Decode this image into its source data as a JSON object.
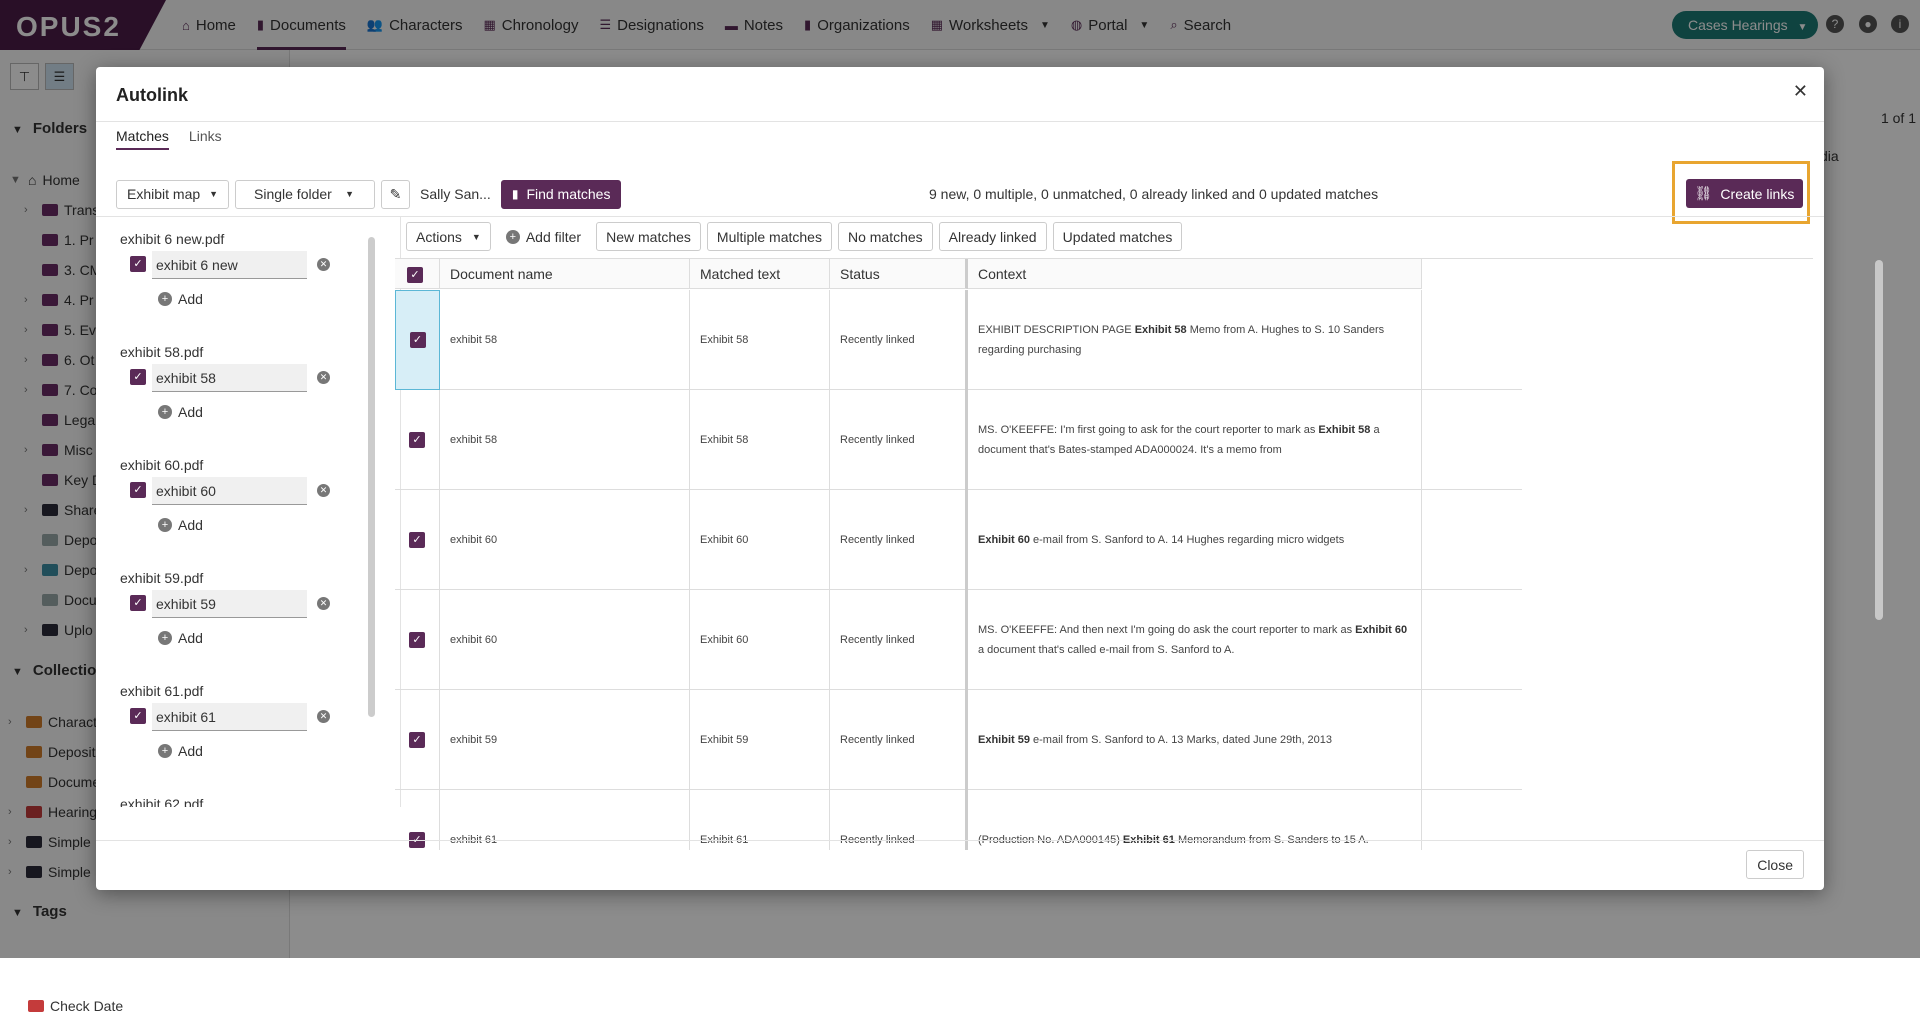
{
  "app": {
    "logo": "OPUS2"
  },
  "nav": {
    "items": [
      {
        "label": "Home",
        "icon": "home-icon",
        "glyph": "⌂"
      },
      {
        "label": "Documents",
        "icon": "document-icon",
        "glyph": "▮"
      },
      {
        "label": "Characters",
        "icon": "people-icon",
        "glyph": "👥"
      },
      {
        "label": "Chronology",
        "icon": "calendar-icon",
        "glyph": "▦"
      },
      {
        "label": "Designations",
        "icon": "list-icon",
        "glyph": "☰"
      },
      {
        "label": "Notes",
        "icon": "note-icon",
        "glyph": "▬"
      },
      {
        "label": "Organizations",
        "icon": "building-icon",
        "glyph": "▮"
      },
      {
        "label": "Worksheets",
        "icon": "grid-icon",
        "glyph": "▦"
      },
      {
        "label": "Portal",
        "icon": "globe-icon",
        "glyph": "◍"
      },
      {
        "label": "Search",
        "icon": "search-icon",
        "glyph": "⌕"
      }
    ],
    "cases_label": "Cases Hearings"
  },
  "sidebar": {
    "folders_title": "Folders",
    "folders": [
      "Home",
      "Trans",
      "1. Pr",
      "3. CM",
      "4. Pr",
      "5. Ev",
      "6. Ot",
      "7. Co",
      "Lega",
      "Misc",
      "Key D",
      "Share",
      "Depo",
      "Depo",
      "Docu",
      "Uplo"
    ],
    "collections_title": "Collectio",
    "collections": [
      "Charact",
      "Deposit",
      "Docume",
      "Hearing",
      "Simple",
      "Simple"
    ],
    "tags_title": "Tags",
    "tags": [
      "Check Date"
    ]
  },
  "modal": {
    "title": "Autolink",
    "tabs": [
      "Matches",
      "Links"
    ],
    "toolbar": {
      "exhibit_map": "Exhibit map",
      "single_folder": "Single folder",
      "sally": "Sally San...",
      "find_matches": "Find matches"
    },
    "summary": "9 new, 0 multiple, 0 unmatched, 0 already linked and 0 updated matches",
    "create_links": "Create links",
    "left_items": [
      {
        "name": "exhibit 6 new.pdf",
        "value": "exhibit 6 new"
      },
      {
        "name": "exhibit 58.pdf",
        "value": "exhibit 58"
      },
      {
        "name": "exhibit 60.pdf",
        "value": "exhibit 60"
      },
      {
        "name": "exhibit 59.pdf",
        "value": "exhibit 59"
      },
      {
        "name": "exhibit 61.pdf",
        "value": "exhibit 61"
      },
      {
        "name": "exhibit 62.pdf",
        "value": ""
      }
    ],
    "add_label": "Add",
    "filters": [
      "Actions",
      "Add filter",
      "New matches",
      "Multiple matches",
      "No matches",
      "Already linked",
      "Updated matches"
    ],
    "columns": [
      "Document name",
      "Matched text",
      "Status",
      "Context"
    ],
    "rows": [
      {
        "doc": "exhibit 58",
        "matched": "Exhibit 58",
        "status": "Recently linked",
        "ctx_pre": "EXHIBIT DESCRIPTION PAGE ",
        "ctx_bold": "Exhibit 58",
        "ctx_post": " Memo from A. Hughes to S. 10 Sanders regarding purchasing"
      },
      {
        "doc": "exhibit 58",
        "matched": "Exhibit 58",
        "status": "Recently linked",
        "ctx_pre": "MS. O'KEEFFE: I'm first going to ask for the court reporter to mark as ",
        "ctx_bold": "Exhibit 58",
        "ctx_post": " a document that's Bates-stamped ADA000024. It's a memo from"
      },
      {
        "doc": "exhibit 60",
        "matched": "Exhibit 60",
        "status": "Recently linked",
        "ctx_pre": "",
        "ctx_bold": "Exhibit 60",
        "ctx_post": " e-mail from S. Sanford to A. 14 Hughes regarding micro widgets"
      },
      {
        "doc": "exhibit 60",
        "matched": "Exhibit 60",
        "status": "Recently linked",
        "ctx_pre": "MS. O'KEEFFE: And then next I'm going do ask the court reporter to mark as ",
        "ctx_bold": "Exhibit 60",
        "ctx_post": " a document that's called e-mail from S. Sanford to A."
      },
      {
        "doc": "exhibit 59",
        "matched": "Exhibit 59",
        "status": "Recently linked",
        "ctx_pre": "",
        "ctx_bold": "Exhibit 59",
        "ctx_post": " e-mail from S. Sanford to A. 13 Marks, dated June 29th, 2013"
      },
      {
        "doc": "exhibit 61",
        "matched": "Exhibit 61",
        "status": "Recently linked",
        "ctx_pre": "(Production No. ADA000145) ",
        "ctx_bold": "Exhibit 61",
        "ctx_post": " Memorandum from S. Sanders to 15 A."
      }
    ],
    "close_label": "Close"
  },
  "background": {
    "pagination": "1 of 1",
    "col_fragment": "dia"
  }
}
